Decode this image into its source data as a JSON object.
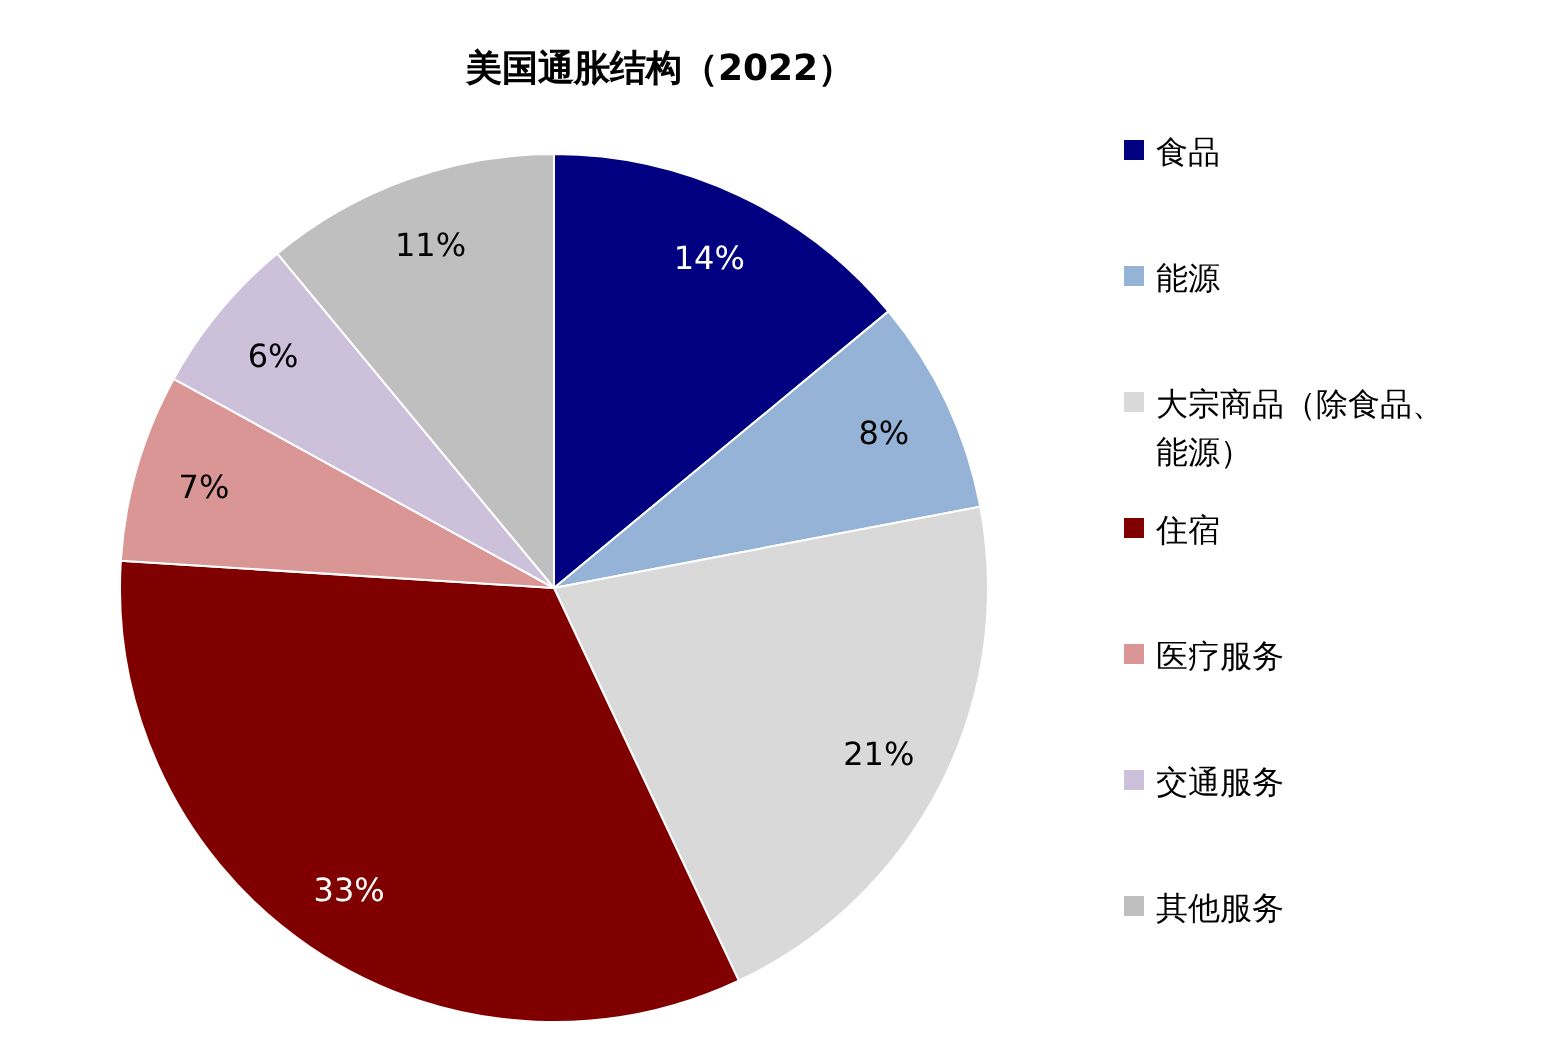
{
  "chart_data": {
    "type": "pie",
    "title": "美国通胀结构（2022）",
    "categories": [
      "食品",
      "能源",
      "大宗商品（除食品、能源）",
      "住宿",
      "医疗服务",
      "交通服务",
      "其他服务"
    ],
    "values": [
      14,
      8,
      21,
      33,
      7,
      6,
      11
    ],
    "colors": [
      "#000080",
      "#95b3d7",
      "#d9d9d9",
      "#800000",
      "#da9694",
      "#ccc0da",
      "#bfbfbf"
    ],
    "value_labels": [
      "14%",
      "8%",
      "21%",
      "33%",
      "7%",
      "6%",
      "11%"
    ],
    "legend": "right"
  }
}
